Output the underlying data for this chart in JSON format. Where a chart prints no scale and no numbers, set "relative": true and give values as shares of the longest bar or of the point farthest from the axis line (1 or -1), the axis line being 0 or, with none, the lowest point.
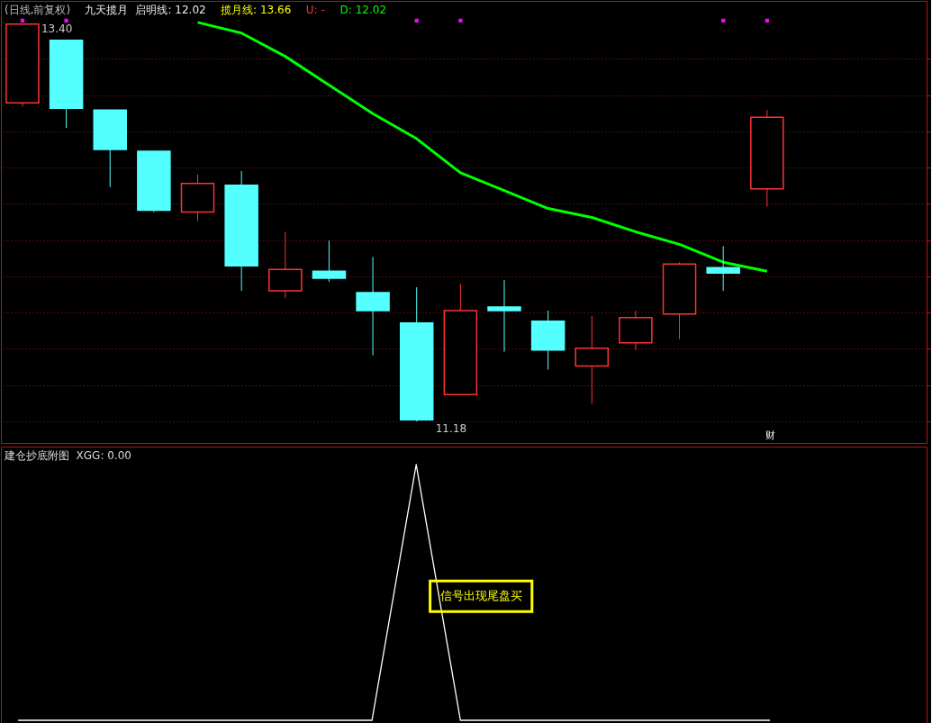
{
  "chart_data": [
    {
      "type": "candlestick",
      "title": "(日线,前复权)",
      "annotations": [
        "九天揽月",
        "启明线: 12.02",
        "揽月线: 13.66",
        "U: -",
        "D: 12.02",
        "财",
        "13.40",
        "11.18"
      ],
      "categories": [
        null,
        null,
        null,
        null,
        null,
        null,
        null,
        null,
        null,
        null,
        null,
        null,
        null,
        null,
        null,
        null,
        null,
        null
      ],
      "ohlc": [
        [
          12.96,
          13.4,
          12.94,
          13.4
        ],
        [
          13.31,
          13.31,
          12.82,
          12.93
        ],
        [
          12.92,
          12.92,
          12.49,
          12.7
        ],
        [
          12.69,
          12.69,
          12.35,
          12.36
        ],
        [
          12.35,
          12.56,
          12.3,
          12.51
        ],
        [
          12.5,
          12.58,
          11.91,
          12.05
        ],
        [
          11.91,
          12.24,
          11.87,
          12.03
        ],
        [
          12.02,
          12.19,
          11.96,
          11.98
        ],
        [
          11.9,
          12.1,
          11.55,
          11.8
        ],
        [
          11.73,
          11.93,
          11.18,
          11.19
        ],
        [
          11.33,
          11.95,
          11.33,
          11.8
        ],
        [
          11.82,
          11.97,
          11.57,
          11.8
        ],
        [
          11.74,
          11.8,
          11.47,
          11.58
        ],
        [
          11.49,
          11.77,
          11.28,
          11.59
        ],
        [
          11.62,
          11.8,
          11.58,
          11.76
        ],
        [
          11.78,
          12.07,
          11.64,
          12.06
        ],
        [
          12.04,
          12.16,
          11.91,
          12.01
        ],
        [
          12.48,
          12.92,
          12.38,
          12.88
        ]
      ],
      "colors": [
        "#ff3333",
        "#54ffff",
        "#54ffff",
        "#54ffff",
        "#ff3333",
        "#54ffff",
        "#ff3333",
        "#54ffff",
        "#54ffff",
        "#54ffff",
        "#ff3333",
        "#54ffff",
        "#54ffff",
        "#ff3333",
        "#ff3333",
        "#ff3333",
        "#54ffff",
        "#ff3333"
      ],
      "series": [
        {
          "type": "line",
          "color": "#00ff00",
          "values": [
            null,
            null,
            null,
            null,
            13.41,
            13.35,
            13.22,
            13.06,
            12.9,
            12.76,
            12.57,
            12.47,
            12.37,
            12.32,
            12.24,
            12.17,
            12.07,
            12.02
          ]
        },
        {
          "type": "scatter",
          "color": "#ff00ff",
          "marker": "square",
          "values": [
            13.42,
            13.42,
            null,
            null,
            null,
            null,
            null,
            null,
            null,
            13.42,
            13.42,
            null,
            null,
            null,
            null,
            null,
            13.42,
            13.42
          ]
        }
      ],
      "ylim": [
        11.06,
        13.53
      ],
      "yticks": [
        {
          "value": 11.18,
          "label": null
        },
        {
          "value": 11.38,
          "label": null
        },
        {
          "value": 11.59,
          "label": null
        },
        {
          "value": 11.79,
          "label": null
        },
        {
          "value": 11.99,
          "label": null
        },
        {
          "value": 12.19,
          "label": null
        },
        {
          "value": 12.4,
          "label": null
        },
        {
          "value": 12.6,
          "label": null
        },
        {
          "value": 12.8,
          "label": null
        },
        {
          "value": 13.0,
          "label": null
        },
        {
          "value": 13.21,
          "label": null
        }
      ],
      "grid": "y",
      "tick_labels": false
    },
    {
      "type": "line",
      "title": "建仓抄底附图",
      "annotations": [
        "XGG: 0.00",
        "信号出现尾盘买"
      ],
      "categories": [
        null,
        null,
        null,
        null,
        null,
        null,
        null,
        null,
        null,
        null,
        null,
        null,
        null,
        null,
        null,
        null,
        null,
        null
      ],
      "relative": true,
      "series": [
        {
          "color": "#ffffff",
          "values": [
            0,
            0,
            0,
            0,
            0,
            0,
            0,
            0,
            0,
            1,
            0,
            0,
            0,
            0,
            0,
            0,
            0,
            0
          ]
        }
      ],
      "tick_labels": false
    }
  ]
}
